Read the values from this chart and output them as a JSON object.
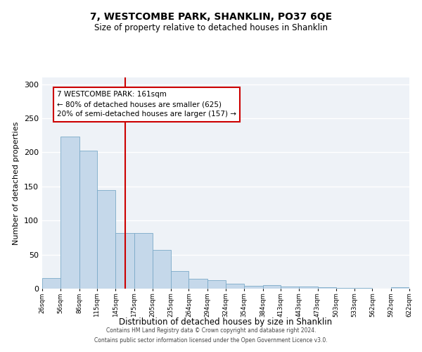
{
  "title": "7, WESTCOMBE PARK, SHANKLIN, PO37 6QE",
  "subtitle": "Size of property relative to detached houses in Shanklin",
  "xlabel": "Distribution of detached houses by size in Shanklin",
  "ylabel": "Number of detached properties",
  "bar_color": "#c5d8ea",
  "bar_edge_color": "#7baac8",
  "background_color": "#eef2f7",
  "annotation_box_color": "#cc0000",
  "vline_color": "#cc0000",
  "vline_x": 161,
  "annotation_title": "7 WESTCOMBE PARK: 161sqm",
  "annotation_line1": "← 80% of detached houses are smaller (625)",
  "annotation_line2": "20% of semi-detached houses are larger (157) →",
  "footer_line1": "Contains HM Land Registry data © Crown copyright and database right 2024.",
  "footer_line2": "Contains public sector information licensed under the Open Government Licence v3.0.",
  "bin_edges": [
    26,
    56,
    86,
    115,
    145,
    175,
    205,
    235,
    264,
    294,
    324,
    354,
    384,
    413,
    443,
    473,
    503,
    533,
    562,
    592,
    622
  ],
  "bin_counts": [
    16,
    223,
    203,
    145,
    82,
    82,
    57,
    26,
    14,
    12,
    7,
    4,
    5,
    3,
    3,
    2,
    1,
    1,
    0,
    2
  ],
  "ylim": [
    0,
    310
  ],
  "yticks": [
    0,
    50,
    100,
    150,
    200,
    250,
    300
  ]
}
